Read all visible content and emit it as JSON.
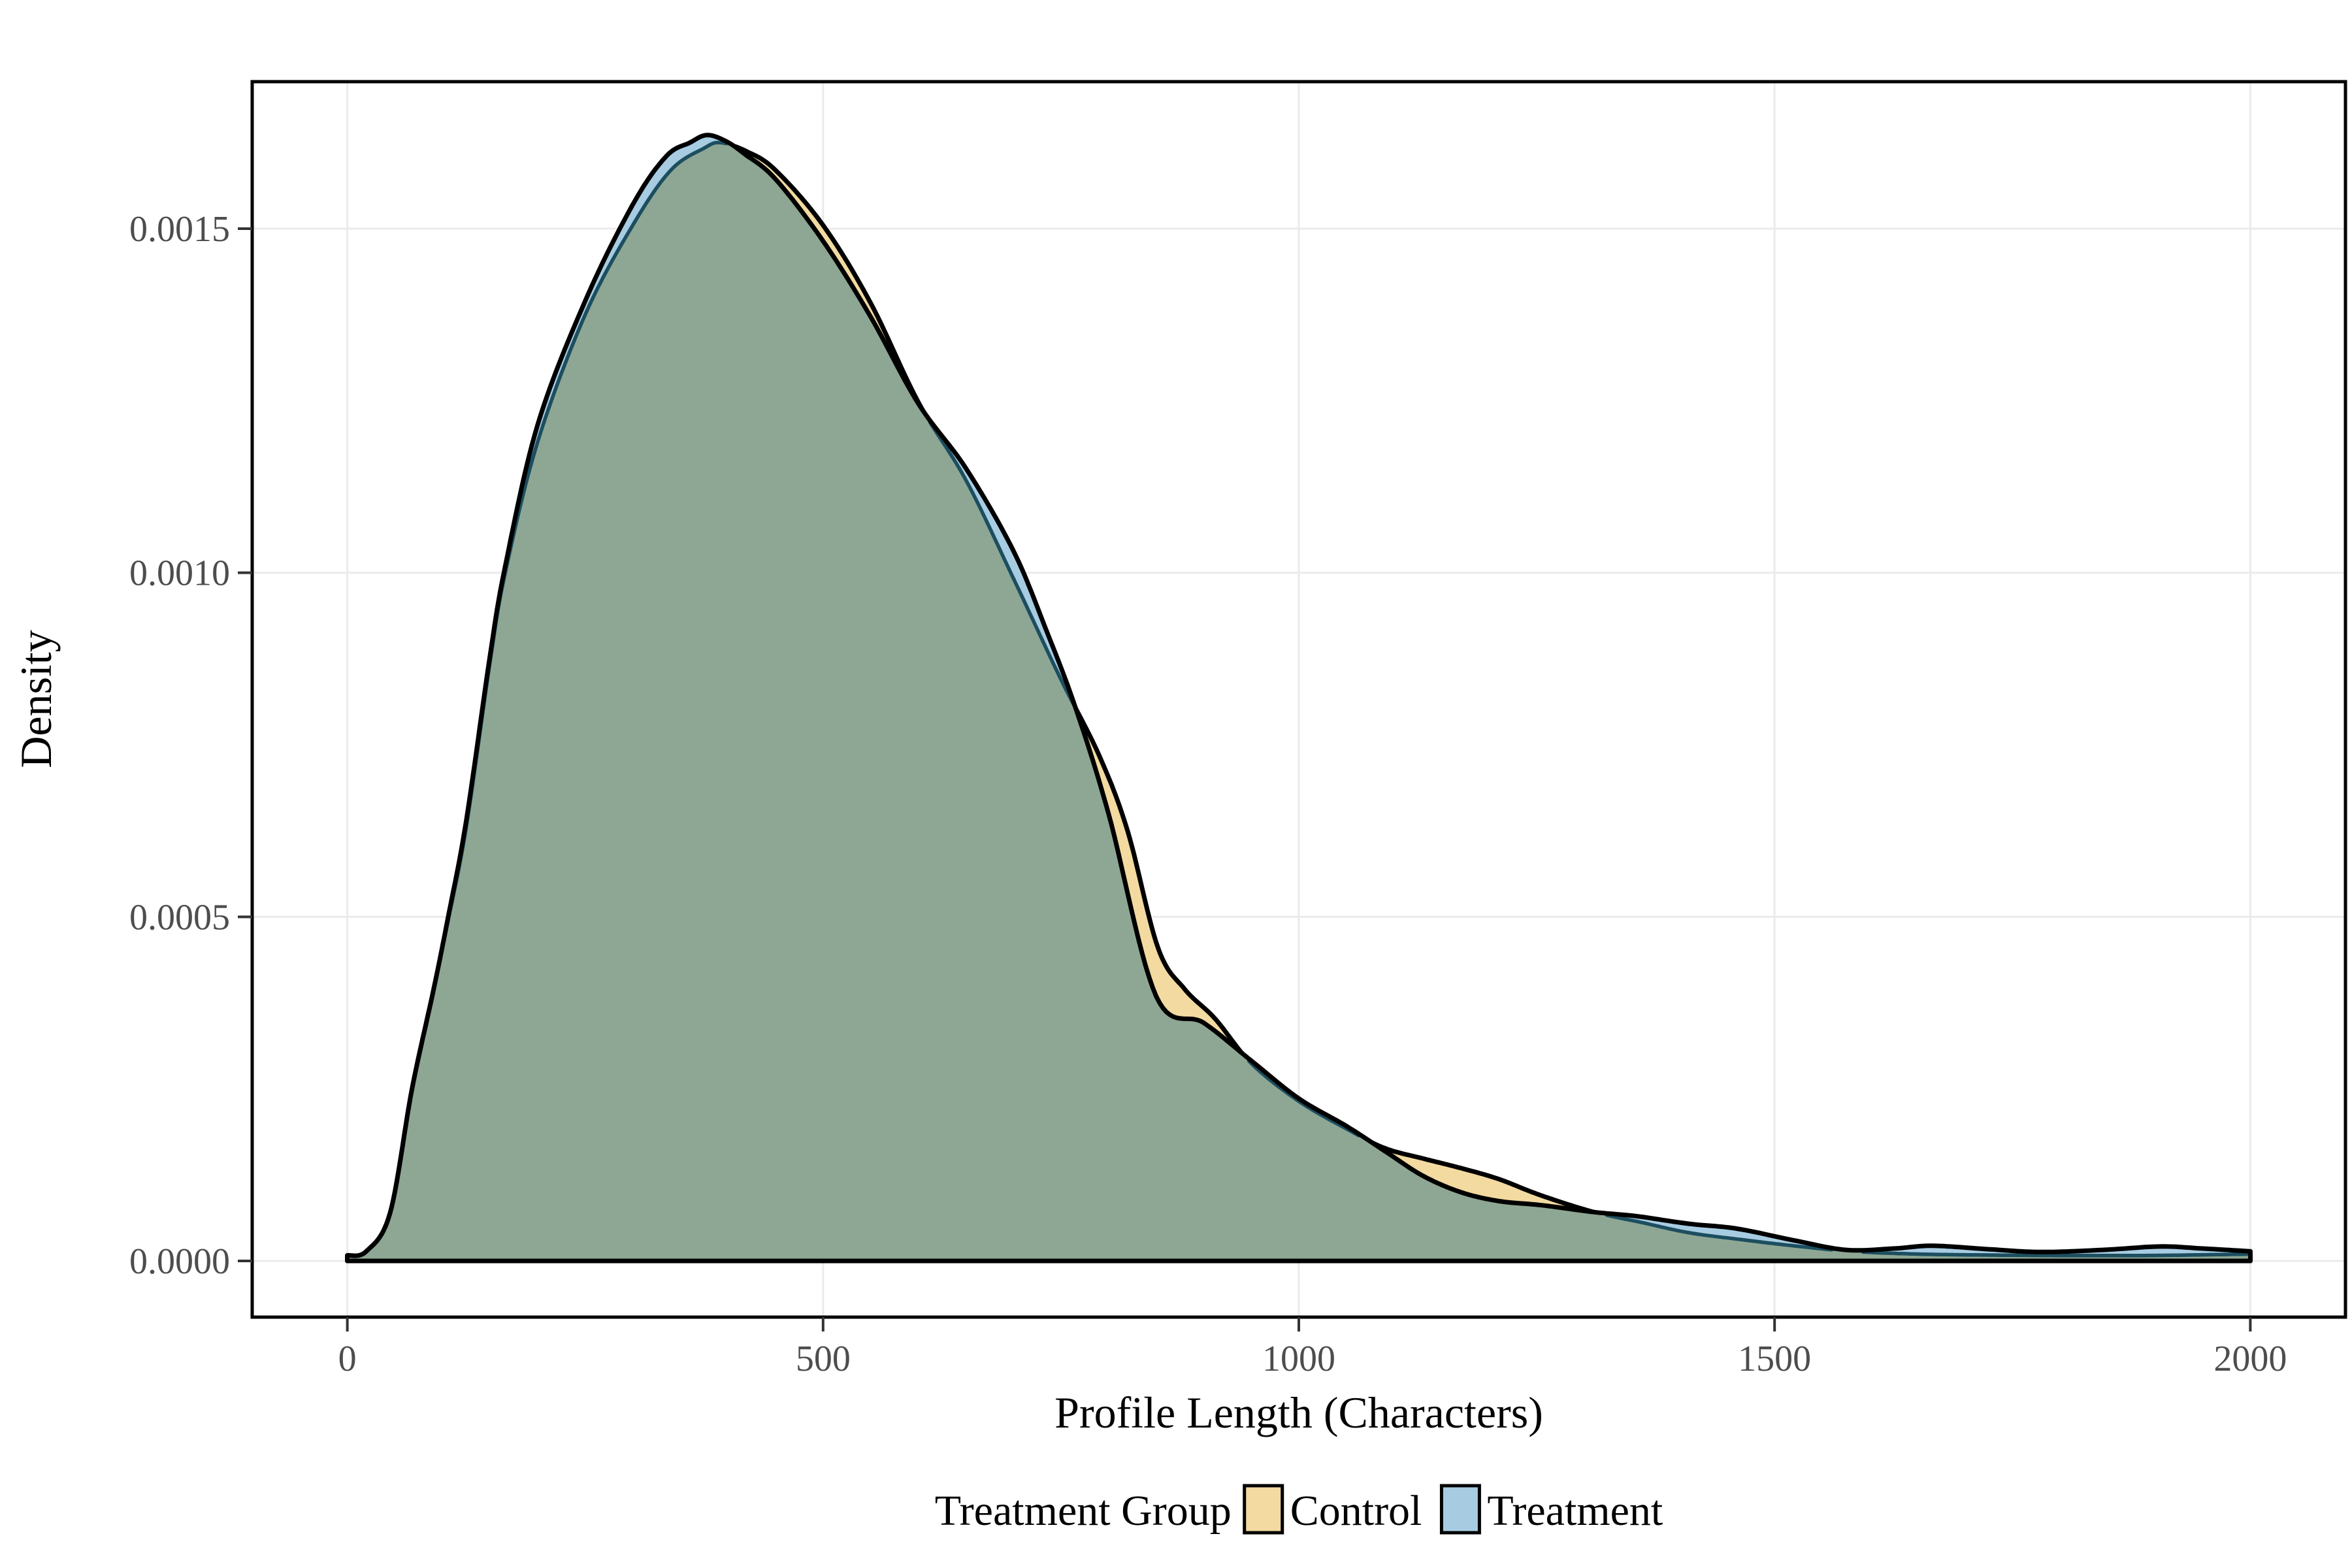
{
  "chart_data": {
    "type": "area",
    "geom": "overlaid-density-curves",
    "title": "",
    "xlabel": "Profile Length (Characters)",
    "ylabel": "Density",
    "x_axis": {
      "range_shown": [
        -100,
        2100
      ],
      "data_range": [
        0,
        2000
      ],
      "ticks": [
        {
          "label": "0",
          "value": 0
        },
        {
          "label": "500",
          "value": 500
        },
        {
          "label": "1000",
          "value": 1000
        },
        {
          "label": "1500",
          "value": 1500
        },
        {
          "label": "2000",
          "value": 2000
        }
      ]
    },
    "y_axis": {
      "range_shown": [
        -8.165e-05,
        0.0017136
      ],
      "data_range": [
        0,
        0.001636
      ],
      "ticks": [
        {
          "label": "0.0000",
          "value": 0.0
        },
        {
          "label": "0.0005",
          "value": 0.0005
        },
        {
          "label": "0.0010",
          "value": 0.001
        },
        {
          "label": "0.0015",
          "value": 0.0015
        }
      ]
    },
    "grid": true,
    "legend_position": "bottom",
    "series": [
      {
        "name": "Control",
        "fill": "#F2DAA0",
        "points": [
          [
            0,
            8e-06
          ],
          [
            20,
            1.4e-05
          ],
          [
            45,
            7e-05
          ],
          [
            68,
            0.00025
          ],
          [
            90,
            0.00039
          ],
          [
            106,
            0.000495
          ],
          [
            125,
            0.00063
          ],
          [
            150,
            0.00087
          ],
          [
            166,
            0.001
          ],
          [
            200,
            0.00119
          ],
          [
            250,
            0.001375
          ],
          [
            300,
            0.001505
          ],
          [
            340,
            0.001585
          ],
          [
            375,
            0.001617
          ],
          [
            392,
            0.001625
          ],
          [
            420,
            0.001612
          ],
          [
            450,
            0.001585
          ],
          [
            500,
            0.001505
          ],
          [
            550,
            0.001392
          ],
          [
            600,
            0.001248
          ],
          [
            650,
            0.001135
          ],
          [
            700,
            0.000992
          ],
          [
            750,
            0.000845
          ],
          [
            790,
            0.000735
          ],
          [
            820,
            0.000625
          ],
          [
            852,
            0.000455
          ],
          [
            880,
            0.000395
          ],
          [
            912,
            0.000352
          ],
          [
            950,
            0.000287
          ],
          [
            1000,
            0.000232
          ],
          [
            1050,
            0.000192
          ],
          [
            1090,
            0.000164
          ],
          [
            1130,
            0.000149
          ],
          [
            1170,
            0.000135
          ],
          [
            1210,
            0.000119
          ],
          [
            1255,
            9.5e-05
          ],
          [
            1310,
            7.1e-05
          ],
          [
            1360,
            5.6e-05
          ],
          [
            1410,
            4.1e-05
          ],
          [
            1465,
            3.1e-05
          ],
          [
            1520,
            2.2e-05
          ],
          [
            1580,
            1.4e-05
          ],
          [
            1650,
            1e-05
          ],
          [
            1730,
            8.5e-06
          ],
          [
            1820,
            7.8e-06
          ],
          [
            1900,
            8e-06
          ],
          [
            1955,
            9e-06
          ],
          [
            2000,
            1e-05
          ]
        ]
      },
      {
        "name": "Treatment",
        "fill": "#A7CCE2",
        "points": [
          [
            0,
            8e-06
          ],
          [
            20,
            1.4e-05
          ],
          [
            45,
            7e-05
          ],
          [
            68,
            0.00025
          ],
          [
            90,
            0.00039
          ],
          [
            106,
            0.0005
          ],
          [
            125,
            0.00064
          ],
          [
            150,
            0.00088
          ],
          [
            166,
            0.00101
          ],
          [
            200,
            0.001215
          ],
          [
            250,
            0.001395
          ],
          [
            300,
            0.001535
          ],
          [
            335,
            0.001605
          ],
          [
            360,
            0.001625
          ],
          [
            378,
            0.001636
          ],
          [
            398,
            0.001627
          ],
          [
            418,
            0.001608
          ],
          [
            450,
            0.001572
          ],
          [
            500,
            0.001482
          ],
          [
            550,
            0.001372
          ],
          [
            600,
            0.001246
          ],
          [
            650,
            0.001152
          ],
          [
            700,
            0.001032
          ],
          [
            735,
            0.000915
          ],
          [
            765,
            0.000805
          ],
          [
            800,
            0.00065
          ],
          [
            850,
            0.000385
          ],
          [
            900,
            0.000346
          ],
          [
            950,
            0.000291
          ],
          [
            1000,
            0.000236
          ],
          [
            1050,
            0.000196
          ],
          [
            1090,
            0.00016
          ],
          [
            1130,
            0.000124
          ],
          [
            1170,
            0.0001
          ],
          [
            1210,
            8.7e-05
          ],
          [
            1255,
            8.1e-05
          ],
          [
            1310,
            7.1e-05
          ],
          [
            1355,
            6.5e-05
          ],
          [
            1410,
            5.4e-05
          ],
          [
            1460,
            4.7e-05
          ],
          [
            1520,
            3e-05
          ],
          [
            1575,
            1.6e-05
          ],
          [
            1625,
            1.8e-05
          ],
          [
            1666,
            2.2e-05
          ],
          [
            1725,
            1.7e-05
          ],
          [
            1780,
            1.3e-05
          ],
          [
            1845,
            1.6e-05
          ],
          [
            1905,
            2.1e-05
          ],
          [
            1950,
            1.8e-05
          ],
          [
            2000,
            1.4e-05
          ]
        ]
      }
    ],
    "overlap_fill": "#8EA794",
    "covered_outline_color": "#1C4E60",
    "outline_color": "#000000"
  },
  "legend": {
    "title": "Treatment Group",
    "items": [
      {
        "label": "Control",
        "color": "#F2DAA0"
      },
      {
        "label": "Treatment",
        "color": "#A7CCE2"
      }
    ]
  },
  "colors": {
    "background": "#ffffff",
    "panel_border": "#000000",
    "gridline": "#EBEBEB",
    "tick_mark": "#333333",
    "tick_label": "#4d4d4d",
    "axis_title": "#000000"
  }
}
